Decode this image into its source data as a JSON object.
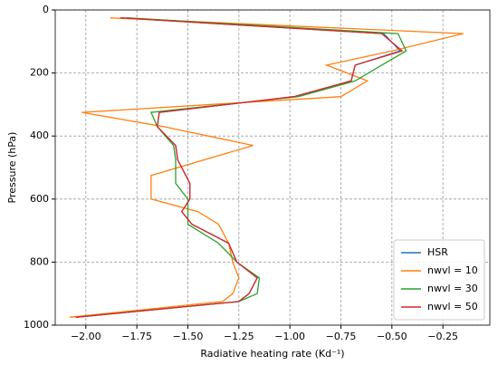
{
  "chart_data": {
    "type": "line",
    "xlabel": "Radiative heating rate (Kd⁻¹)",
    "ylabel": "Pressure (hPa)",
    "xlim": [
      -2.15,
      -0.02
    ],
    "ylim": [
      1000,
      0
    ],
    "xticks": [
      {
        "value": -2.0,
        "label": "−2.00"
      },
      {
        "value": -1.75,
        "label": "−1.75"
      },
      {
        "value": -1.5,
        "label": "−1.50"
      },
      {
        "value": -1.25,
        "label": "−1.25"
      },
      {
        "value": -1.0,
        "label": "−1.00"
      },
      {
        "value": -0.75,
        "label": "−0.75"
      },
      {
        "value": -0.5,
        "label": "−0.50"
      },
      {
        "value": -0.25,
        "label": "−0.25"
      }
    ],
    "yticks": [
      0,
      200,
      400,
      600,
      800,
      1000
    ],
    "grid": true,
    "legend": "lower right",
    "series": [
      {
        "name": "HSR",
        "color": "#1f77b4",
        "x": [
          -1.83,
          -0.54,
          -0.46,
          -0.68,
          -0.7,
          -0.98,
          -1.64,
          -1.65,
          -1.56,
          -1.55,
          -1.49,
          -1.49,
          -1.53,
          -1.48,
          -1.3,
          -1.26,
          -1.16,
          -1.2,
          -1.25,
          -2.05
        ],
        "y": [
          25,
          75,
          130,
          175,
          225,
          275,
          325,
          370,
          430,
          475,
          550,
          600,
          640,
          680,
          740,
          800,
          850,
          900,
          925,
          975
        ]
      },
      {
        "name": "nwvl = 10",
        "color": "#ff7f0e",
        "x": [
          -1.88,
          -0.15,
          -0.5,
          -0.82,
          -0.62,
          -0.75,
          -2.02,
          -1.62,
          -1.18,
          -1.68,
          -1.68,
          -1.68,
          -1.45,
          -1.35,
          -1.3,
          -1.28,
          -1.25,
          -1.28,
          -1.33,
          -2.08
        ],
        "y": [
          25,
          75,
          130,
          175,
          225,
          275,
          325,
          370,
          430,
          525,
          550,
          600,
          640,
          680,
          740,
          800,
          850,
          900,
          925,
          975
        ]
      },
      {
        "name": "nwvl = 30",
        "color": "#2ca02c",
        "x": [
          -1.8,
          -0.47,
          -0.43,
          -0.55,
          -0.68,
          -0.96,
          -1.68,
          -1.65,
          -1.57,
          -1.56,
          -1.56,
          -1.5,
          -1.5,
          -1.5,
          -1.35,
          -1.26,
          -1.15,
          -1.16,
          -1.25,
          -2.05
        ],
        "y": [
          25,
          75,
          130,
          175,
          225,
          275,
          325,
          370,
          430,
          475,
          550,
          600,
          640,
          680,
          740,
          800,
          850,
          900,
          925,
          975
        ]
      },
      {
        "name": "nwvl = 50",
        "color": "#d62728",
        "x": [
          -1.83,
          -0.55,
          -0.45,
          -0.68,
          -0.7,
          -0.98,
          -1.64,
          -1.65,
          -1.56,
          -1.55,
          -1.49,
          -1.49,
          -1.53,
          -1.48,
          -1.3,
          -1.26,
          -1.16,
          -1.2,
          -1.25,
          -2.05
        ],
        "y": [
          25,
          75,
          130,
          175,
          225,
          275,
          325,
          370,
          430,
          475,
          550,
          600,
          640,
          680,
          740,
          800,
          850,
          900,
          925,
          975
        ]
      }
    ]
  }
}
